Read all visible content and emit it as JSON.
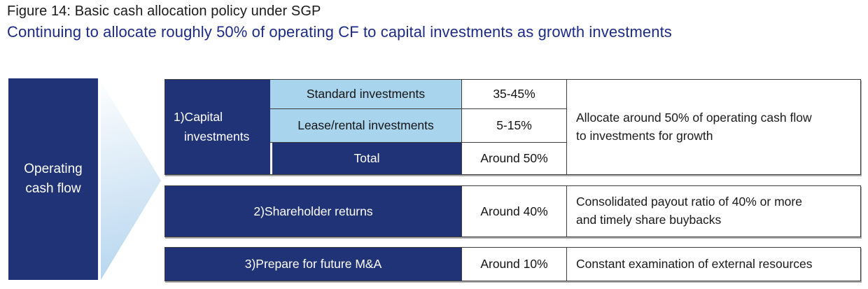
{
  "header": {
    "title": "Figure 14: Basic cash allocation policy under SGP",
    "subtitle": "Continuing to allocate roughly 50% of operating CF to capital investments as growth investments"
  },
  "diagram": {
    "source_box": {
      "label": "Operating cash flow"
    },
    "arrow_icon": "right-pointing-gradient-triangle",
    "blocks": [
      {
        "label": "1)Capital investments",
        "rows": [
          {
            "name": "Standard investments",
            "value": "35-45%"
          },
          {
            "name": "Lease/rental investments",
            "value": "5-15%"
          },
          {
            "name": "Total",
            "value": "Around 50%"
          }
        ],
        "description": "Allocate around 50% of operating cash flow to investments for growth"
      },
      {
        "label": "2)Shareholder returns",
        "value": "Around 40%",
        "description": "Consolidated payout ratio of 40% or more and timely share buybacks"
      },
      {
        "label": "3)Prepare for future M&A",
        "value": "Around 10%",
        "description": "Constant examination of external resources"
      }
    ]
  },
  "colors": {
    "navy": "#213377",
    "light_blue": "#a9d4ee",
    "subtitle_blue": "#1c2b85",
    "border_dark": "#3d3d3d",
    "arrow_gradient_start": "#fbfdfe",
    "arrow_gradient_end": "#b3d4ee"
  }
}
